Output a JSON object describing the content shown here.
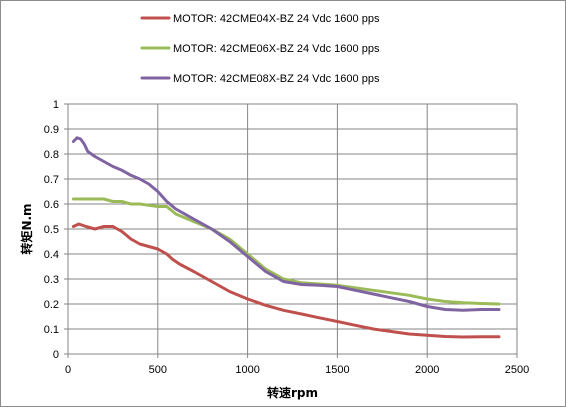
{
  "chart_data": {
    "type": "line",
    "title": "",
    "xlabel": "转速rpm",
    "ylabel": "转矩N.m",
    "xlim": [
      0,
      2500
    ],
    "ylim": [
      0,
      1
    ],
    "xticks": [
      0,
      500,
      1000,
      1500,
      2000,
      2500
    ],
    "yticks": [
      0,
      0.1,
      0.2,
      0.3,
      0.4,
      0.5,
      0.6,
      0.7,
      0.8,
      0.9,
      1
    ],
    "grid": true,
    "legend_position": "top",
    "series": [
      {
        "name": "MOTOR: 42CME04X-BZ 24 Vdc   1600 pps",
        "color": "#c0504d",
        "x": [
          30,
          60,
          100,
          150,
          200,
          250,
          300,
          350,
          400,
          450,
          500,
          550,
          580,
          620,
          700,
          800,
          900,
          1000,
          1100,
          1200,
          1300,
          1400,
          1500,
          1600,
          1700,
          1800,
          1900,
          2000,
          2100,
          2200,
          2300,
          2400
        ],
        "values": [
          0.51,
          0.52,
          0.51,
          0.5,
          0.51,
          0.51,
          0.49,
          0.46,
          0.44,
          0.43,
          0.42,
          0.4,
          0.38,
          0.36,
          0.33,
          0.29,
          0.25,
          0.22,
          0.195,
          0.175,
          0.16,
          0.145,
          0.13,
          0.115,
          0.1,
          0.09,
          0.08,
          0.075,
          0.07,
          0.068,
          0.069,
          0.069
        ]
      },
      {
        "name": "MOTOR: 42CME06X-BZ 24 Vdc   1600 pps",
        "color": "#9bbb59",
        "x": [
          30,
          60,
          100,
          150,
          200,
          250,
          300,
          350,
          400,
          450,
          500,
          550,
          600,
          700,
          800,
          900,
          1000,
          1100,
          1200,
          1300,
          1400,
          1500,
          1600,
          1700,
          1800,
          1900,
          2000,
          2100,
          2200,
          2300,
          2400
        ],
        "values": [
          0.62,
          0.62,
          0.62,
          0.62,
          0.62,
          0.61,
          0.61,
          0.6,
          0.6,
          0.595,
          0.59,
          0.59,
          0.56,
          0.53,
          0.5,
          0.46,
          0.4,
          0.34,
          0.3,
          0.285,
          0.28,
          0.275,
          0.265,
          0.255,
          0.245,
          0.235,
          0.22,
          0.21,
          0.205,
          0.202,
          0.2
        ]
      },
      {
        "name": "MOTOR: 42CME08X-BZ 24 Vdc   1600 pps",
        "color": "#8064a2",
        "x": [
          30,
          50,
          70,
          90,
          110,
          150,
          200,
          250,
          300,
          350,
          400,
          450,
          500,
          550,
          600,
          700,
          800,
          900,
          1000,
          1100,
          1200,
          1300,
          1400,
          1500,
          1600,
          1700,
          1800,
          1900,
          2000,
          2100,
          2200,
          2300,
          2400
        ],
        "values": [
          0.85,
          0.865,
          0.86,
          0.84,
          0.81,
          0.79,
          0.77,
          0.75,
          0.735,
          0.715,
          0.7,
          0.68,
          0.65,
          0.61,
          0.58,
          0.54,
          0.5,
          0.45,
          0.39,
          0.33,
          0.29,
          0.278,
          0.275,
          0.27,
          0.255,
          0.24,
          0.225,
          0.21,
          0.19,
          0.178,
          0.175,
          0.178,
          0.178
        ]
      }
    ]
  }
}
